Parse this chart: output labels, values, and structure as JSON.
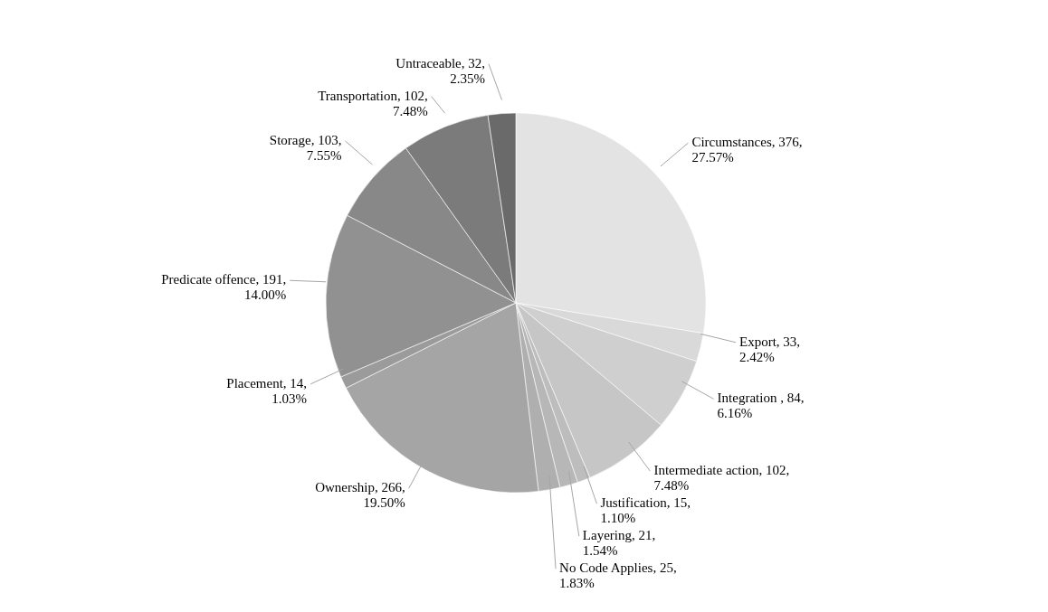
{
  "chart_data": {
    "type": "pie",
    "categories": [
      "Circumstances",
      "Export",
      "Integration ",
      "Intermediate action",
      "Justification",
      "Layering",
      "No Code Applies",
      "Ownership",
      "Placement",
      "Predicate offence",
      "Storage",
      "Transportation",
      "Untraceable"
    ],
    "values": [
      27.57,
      2.42,
      6.16,
      7.48,
      1.1,
      1.54,
      1.83,
      19.5,
      1.03,
      14.0,
      7.55,
      7.48,
      2.35
    ],
    "value_labels": [
      "376, 27.57%",
      "33, 2.42%",
      "84, 6.16%",
      "102, 7.48%",
      "15, 1.10%",
      "21, 1.54%",
      "25, 1.83%",
      "266, 19.50%",
      "14, 1.03%",
      "191, 14.00%",
      "103, 7.55%",
      "102, 7.48%",
      "32, 2.35%"
    ],
    "colors": [
      "#e3e3e3",
      "#d9d9d9",
      "#cfcfcf",
      "#c6c6c6",
      "#bdbdbd",
      "#b7b7b7",
      "#afafaf",
      "#a5a5a5",
      "#9b9b9b",
      "#919191",
      "#888888",
      "#7b7b7b",
      "#6a6a6a"
    ]
  }
}
